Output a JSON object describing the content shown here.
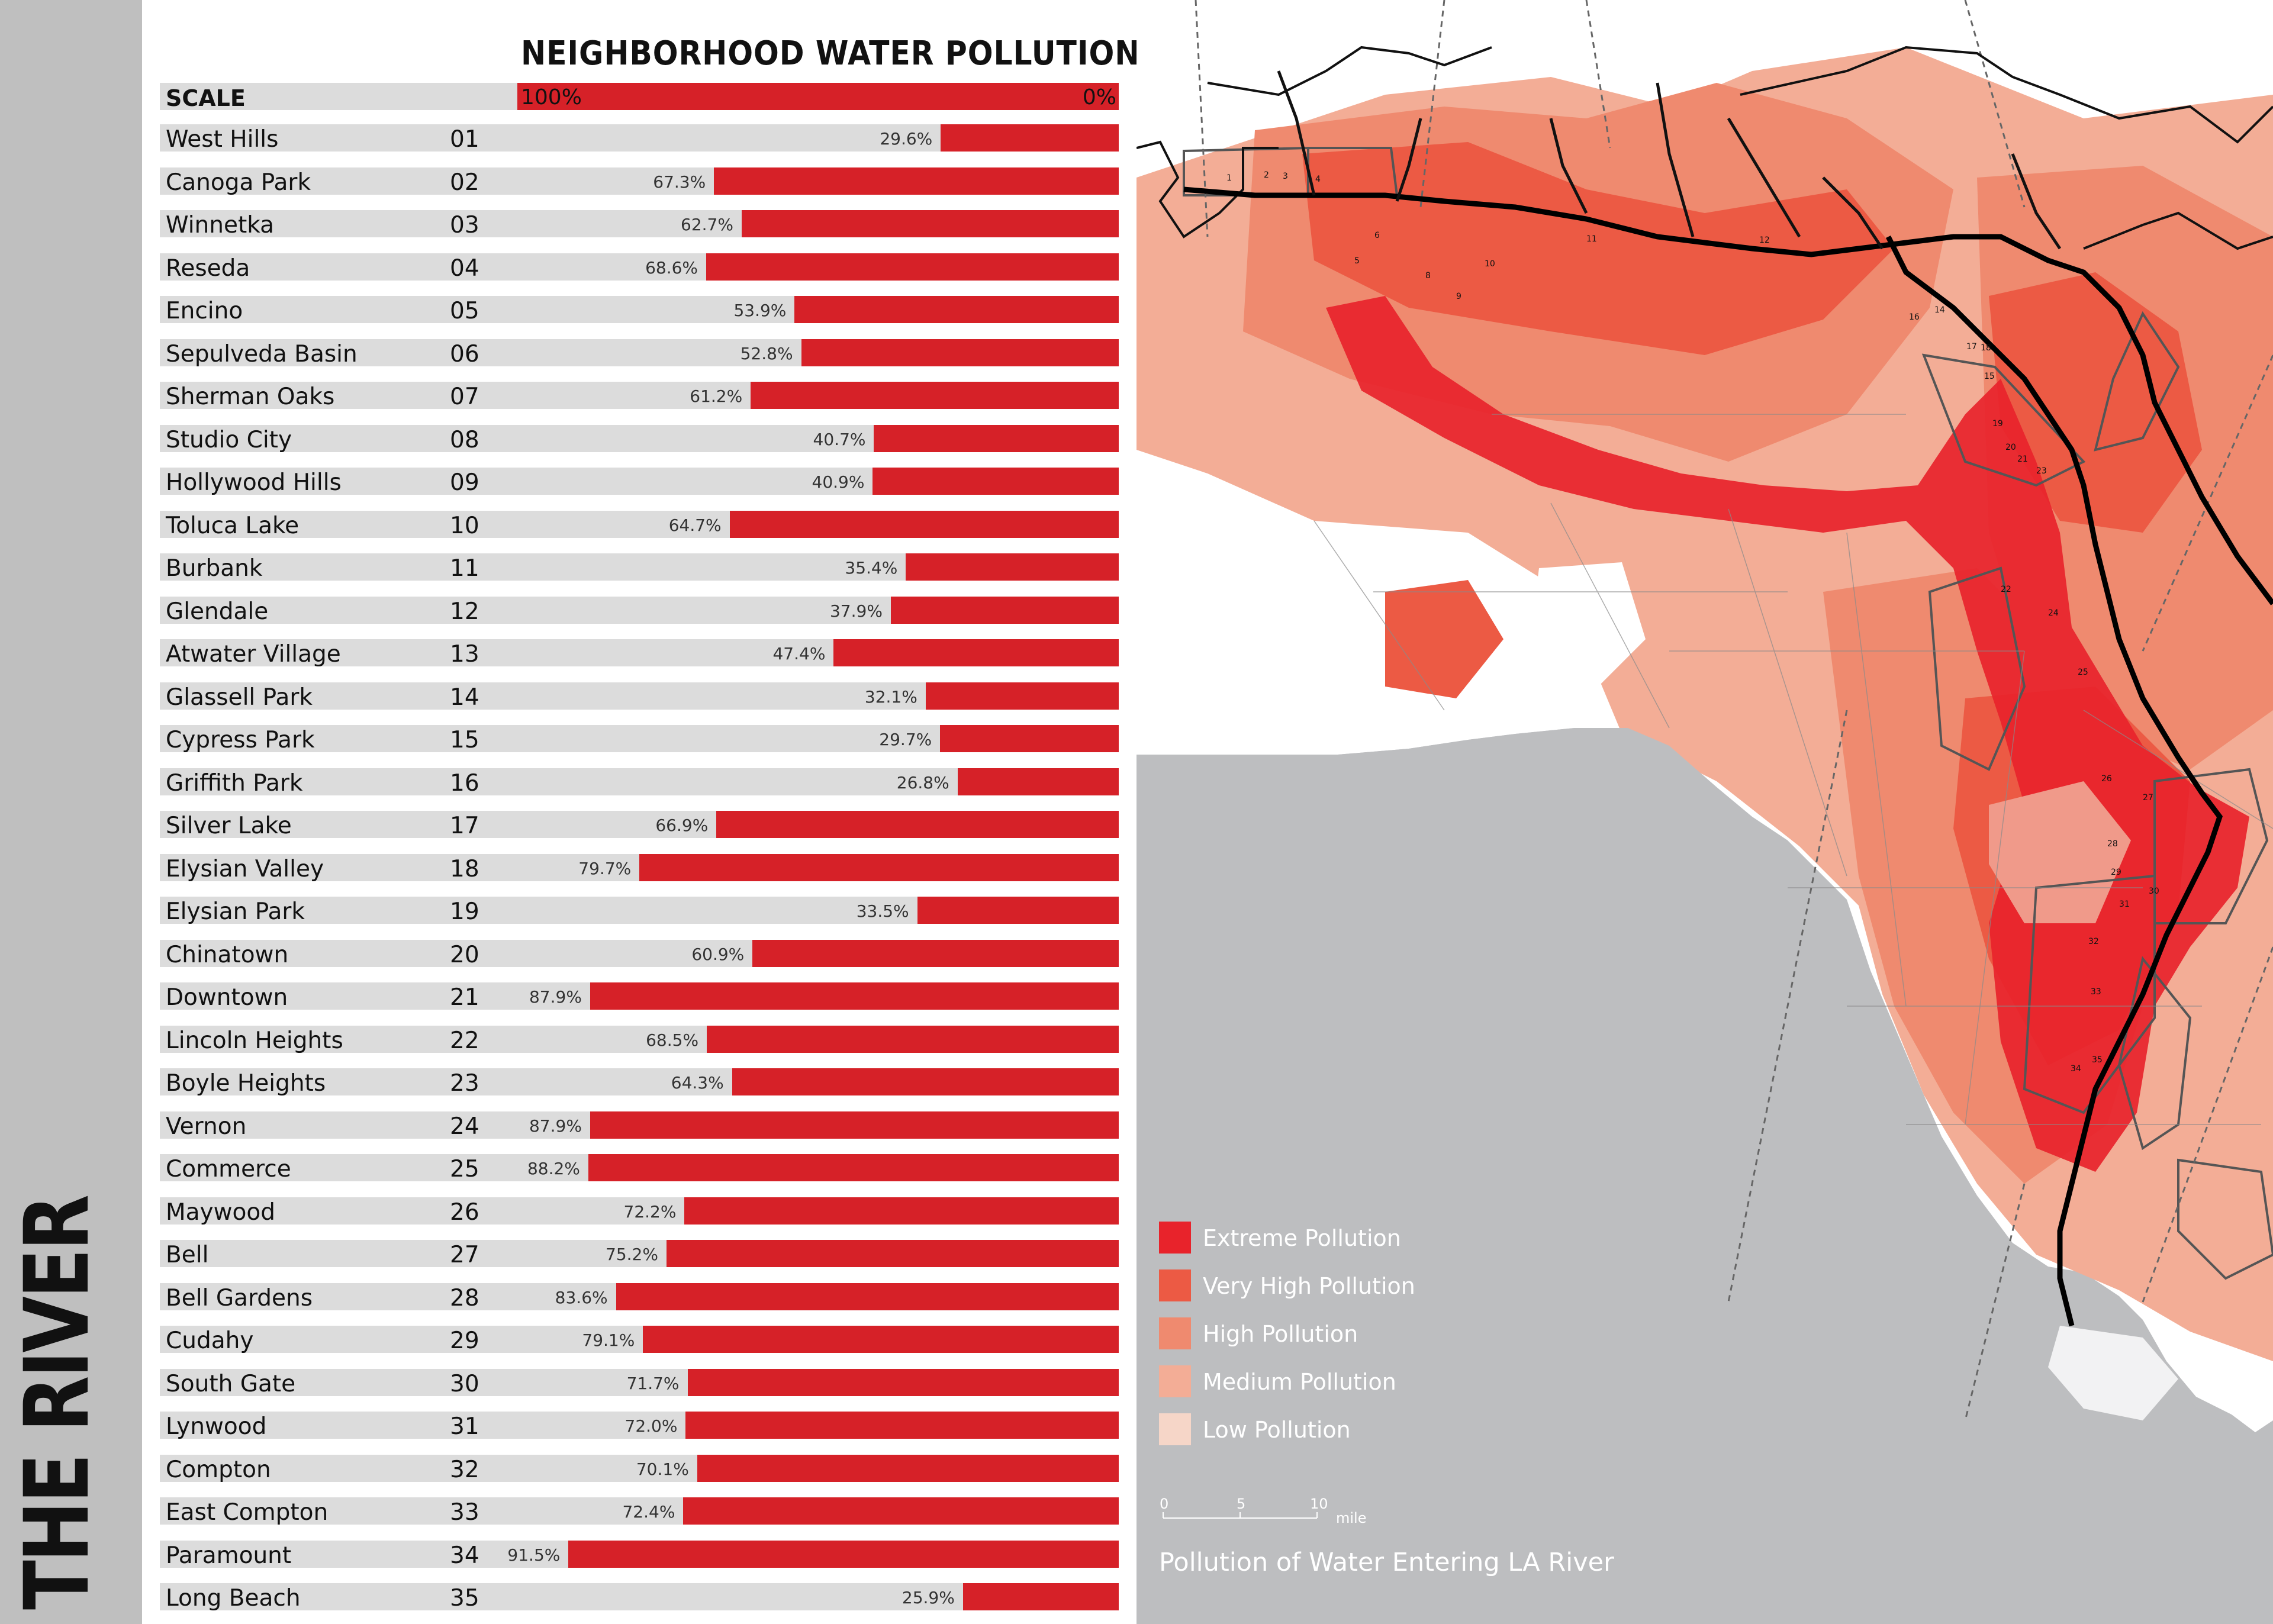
{
  "side_title": "THE RIVER",
  "chart_data": {
    "type": "bar",
    "title": "NEIGHBORHOOD WATER POLLUTION",
    "scale": {
      "label": "SCALE",
      "left": "100%",
      "right": "0%"
    },
    "rows": [
      {
        "name": "West Hills",
        "num": "01",
        "value": 29.6,
        "label": "29.6%"
      },
      {
        "name": "Canoga Park",
        "num": "02",
        "value": 67.3,
        "label": "67.3%"
      },
      {
        "name": "Winnetka",
        "num": "03",
        "value": 62.7,
        "label": "62.7%"
      },
      {
        "name": "Reseda",
        "num": "04",
        "value": 68.6,
        "label": "68.6%"
      },
      {
        "name": "Encino",
        "num": "05",
        "value": 53.9,
        "label": "53.9%"
      },
      {
        "name": "Sepulveda Basin",
        "num": "06",
        "value": 52.8,
        "label": "52.8%"
      },
      {
        "name": "Sherman Oaks",
        "num": "07",
        "value": 61.2,
        "label": "61.2%"
      },
      {
        "name": "Studio City",
        "num": "08",
        "value": 40.7,
        "label": "40.7%"
      },
      {
        "name": "Hollywood Hills",
        "num": "09",
        "value": 40.9,
        "label": "40.9%"
      },
      {
        "name": "Toluca Lake",
        "num": "10",
        "value": 64.7,
        "label": "64.7%"
      },
      {
        "name": "Burbank",
        "num": "11",
        "value": 35.4,
        "label": "35.4%"
      },
      {
        "name": "Glendale",
        "num": "12",
        "value": 37.9,
        "label": "37.9%"
      },
      {
        "name": "Atwater Village",
        "num": "13",
        "value": 47.4,
        "label": "47.4%"
      },
      {
        "name": "Glassell Park",
        "num": "14",
        "value": 32.1,
        "label": "32.1%"
      },
      {
        "name": "Cypress Park",
        "num": "15",
        "value": 29.7,
        "label": "29.7%"
      },
      {
        "name": "Griffith Park",
        "num": "16",
        "value": 26.8,
        "label": "26.8%"
      },
      {
        "name": "Silver Lake",
        "num": "17",
        "value": 66.9,
        "label": "66.9%"
      },
      {
        "name": "Elysian Valley",
        "num": "18",
        "value": 79.7,
        "label": "79.7%"
      },
      {
        "name": "Elysian Park",
        "num": "19",
        "value": 33.5,
        "label": "33.5%"
      },
      {
        "name": "Chinatown",
        "num": "20",
        "value": 60.9,
        "label": "60.9%"
      },
      {
        "name": "Downtown",
        "num": "21",
        "value": 87.9,
        "label": "87.9%"
      },
      {
        "name": "Lincoln Heights",
        "num": "22",
        "value": 68.5,
        "label": "68.5%"
      },
      {
        "name": "Boyle Heights",
        "num": "23",
        "value": 64.3,
        "label": "64.3%"
      },
      {
        "name": "Vernon",
        "num": "24",
        "value": 87.9,
        "label": "87.9%"
      },
      {
        "name": "Commerce",
        "num": "25",
        "value": 88.2,
        "label": "88.2%"
      },
      {
        "name": "Maywood",
        "num": "26",
        "value": 72.2,
        "label": "72.2%"
      },
      {
        "name": "Bell",
        "num": "27",
        "value": 75.2,
        "label": "75.2%"
      },
      {
        "name": "Bell Gardens",
        "num": "28",
        "value": 83.6,
        "label": "83.6%"
      },
      {
        "name": "Cudahy",
        "num": "29",
        "value": 79.1,
        "label": "79.1%"
      },
      {
        "name": "South Gate",
        "num": "30",
        "value": 71.7,
        "label": "71.7%"
      },
      {
        "name": "Lynwood",
        "num": "31",
        "value": 72.0,
        "label": "72.0%"
      },
      {
        "name": "Compton",
        "num": "32",
        "value": 70.1,
        "label": "70.1%"
      },
      {
        "name": "East Compton",
        "num": "33",
        "value": 72.4,
        "label": "72.4%"
      },
      {
        "name": "Paramount",
        "num": "34",
        "value": 91.5,
        "label": "91.5%"
      },
      {
        "name": "Long Beach",
        "num": "35",
        "value": 25.9,
        "label": "25.9%"
      }
    ],
    "xlim": [
      0,
      100
    ],
    "colors": {
      "bar": "#d62128",
      "track": "#dcdcdc"
    }
  },
  "map": {
    "legend": [
      {
        "label": "Extreme Pollution",
        "color": "#e8232b"
      },
      {
        "label": "Very High Pollution",
        "color": "#ec5a44"
      },
      {
        "label": "High Pollution",
        "color": "#ef8a6f"
      },
      {
        "label": "Medium Pollution",
        "color": "#f3ad96"
      },
      {
        "label": "Low Pollution",
        "color": "#f6d6c8"
      }
    ],
    "scalebar": {
      "ticks": [
        "0",
        "5",
        "10"
      ],
      "unit": "mile"
    },
    "caption": "Pollution of Water Entering LA River",
    "area_labels": [
      "1",
      "2",
      "3",
      "4",
      "5",
      "6",
      "8",
      "9",
      "10",
      "11",
      "12",
      "14",
      "15",
      "16",
      "17",
      "18",
      "19",
      "20",
      "21",
      "22",
      "23",
      "24",
      "25",
      "26",
      "27",
      "28",
      "29",
      "30",
      "31",
      "32",
      "33",
      "34",
      "35"
    ]
  }
}
